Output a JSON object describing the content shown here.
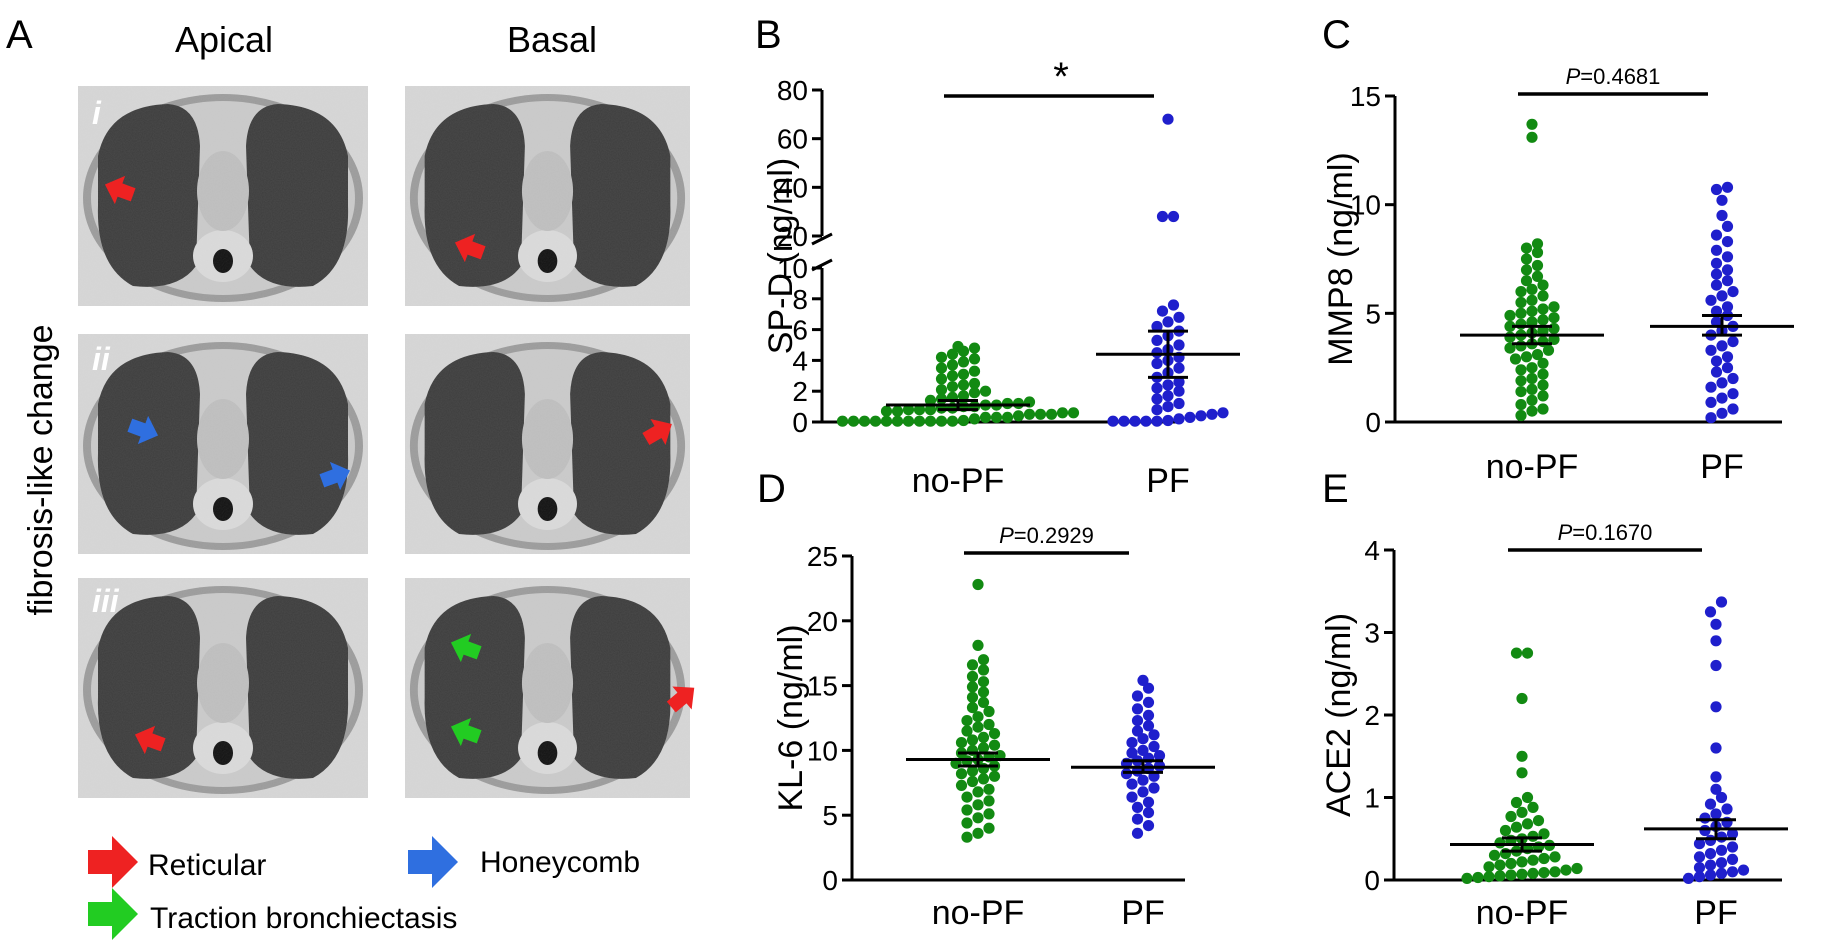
{
  "panel_a": {
    "letter": "A",
    "col_apical": "Apical",
    "col_basal": "Basal",
    "side_label": "fibrosis-like  change",
    "rows": [
      "i",
      "ii",
      "iii"
    ],
    "legend": {
      "reticular": "Reticular",
      "honeycomb": "Honeycomb",
      "traction": "Traction bronchiectasis"
    },
    "colors": {
      "reticular": "#ee2222",
      "honeycomb": "#2f6fe0",
      "traction": "#22cc22"
    }
  },
  "colors": {
    "no_pf": "#128a12",
    "pf": "#1f1fcc"
  },
  "chart_data": [
    {
      "id": "B",
      "type": "scatter",
      "letter": "B",
      "ylabel": "SP-D (ng/ml)",
      "categories": [
        "no-PF",
        "PF"
      ],
      "y_lower_range": [
        0,
        10
      ],
      "y_upper_range": [
        20,
        80
      ],
      "yticks_lower": [
        "0",
        "2",
        "4",
        "6",
        "8",
        "10"
      ],
      "yticks_upper": [
        "20",
        "40",
        "60",
        "80"
      ],
      "significance": "*",
      "series": [
        {
          "name": "no-PF",
          "mean": 1.1,
          "sem_low": 0.8,
          "sem_high": 1.4,
          "values": [
            0.05,
            0.05,
            0.05,
            0.05,
            0.05,
            0.05,
            0.05,
            0.05,
            0.05,
            0.05,
            0.05,
            0.1,
            0.2,
            0.3,
            0.3,
            0.3,
            0.4,
            0.5,
            0.5,
            0.5,
            0.6,
            0.6,
            0.7,
            0.7,
            0.8,
            0.8,
            0.8,
            0.9,
            0.9,
            1.0,
            1.0,
            1.1,
            1.1,
            1.2,
            1.2,
            1.3,
            1.4,
            1.5,
            1.6,
            1.7,
            1.9,
            2.0,
            2.1,
            2.3,
            2.4,
            2.5,
            2.8,
            3.0,
            3.1,
            3.3,
            3.5,
            3.7,
            3.9,
            4.1,
            4.2,
            4.4,
            4.6,
            4.8,
            4.9
          ]
        },
        {
          "name": "PF",
          "mean": 4.4,
          "sem_low": 2.9,
          "sem_high": 5.9,
          "values": [
            0.05,
            0.05,
            0.05,
            0.05,
            0.05,
            0.1,
            0.2,
            0.3,
            0.4,
            0.5,
            0.6,
            0.8,
            1.0,
            1.2,
            1.5,
            1.7,
            2.0,
            2.2,
            2.4,
            2.6,
            2.9,
            3.2,
            3.5,
            3.8,
            4.0,
            4.2,
            4.5,
            4.7,
            5.0,
            5.3,
            5.6,
            5.9,
            6.2,
            6.5,
            6.8,
            7.2,
            7.6,
            28,
            28,
            68
          ]
        }
      ]
    },
    {
      "id": "C",
      "type": "scatter",
      "letter": "C",
      "ylabel": "MMP8 (ng/ml)",
      "categories": [
        "no-PF",
        "PF"
      ],
      "ylim": [
        0,
        15
      ],
      "yticks": [
        "0",
        "5",
        "10",
        "15"
      ],
      "p_prefix": "P",
      "p_value": "=0.4681",
      "series": [
        {
          "name": "no-PF",
          "mean": 4.0,
          "sem_low": 3.6,
          "sem_high": 4.4,
          "values": [
            0.3,
            0.5,
            0.6,
            0.8,
            1.0,
            1.2,
            1.4,
            1.5,
            1.7,
            1.9,
            2.0,
            2.2,
            2.4,
            2.5,
            2.7,
            2.9,
            3.0,
            3.1,
            3.3,
            3.4,
            3.5,
            3.6,
            3.7,
            3.8,
            3.9,
            4.0,
            4.1,
            4.2,
            4.3,
            4.4,
            4.5,
            4.6,
            4.7,
            4.8,
            4.9,
            5.0,
            5.1,
            5.2,
            5.3,
            5.5,
            5.6,
            5.8,
            6.0,
            6.1,
            6.3,
            6.5,
            6.7,
            7.0,
            7.2,
            7.5,
            7.8,
            8.0,
            8.2,
            13.1,
            13.7
          ]
        },
        {
          "name": "PF",
          "mean": 4.4,
          "sem_low": 4.0,
          "sem_high": 4.9,
          "values": [
            0.2,
            0.4,
            0.6,
            0.9,
            1.1,
            1.3,
            1.6,
            1.8,
            2.0,
            2.3,
            2.5,
            2.8,
            3.0,
            3.3,
            3.5,
            3.7,
            4.0,
            4.2,
            4.4,
            4.6,
            4.9,
            5.1,
            5.3,
            5.6,
            5.8,
            6.0,
            6.3,
            6.5,
            6.8,
            7.0,
            7.3,
            7.6,
            7.9,
            8.3,
            8.6,
            9.0,
            9.5,
            10.2,
            10.7,
            10.8
          ]
        }
      ]
    },
    {
      "id": "D",
      "type": "scatter",
      "letter": "D",
      "ylabel": "KL-6 (ng/ml)",
      "categories": [
        "no-PF",
        "PF"
      ],
      "ylim": [
        0,
        25
      ],
      "yticks": [
        "0",
        "5",
        "10",
        "15",
        "20",
        "25"
      ],
      "p_prefix": "P",
      "p_value": "=0.2929",
      "series": [
        {
          "name": "no-PF",
          "mean": 9.3,
          "sem_low": 8.8,
          "sem_high": 9.8,
          "values": [
            3.3,
            3.6,
            4.0,
            4.4,
            4.8,
            5.1,
            5.4,
            5.8,
            6.1,
            6.4,
            6.8,
            7.0,
            7.3,
            7.6,
            7.8,
            8.0,
            8.2,
            8.4,
            8.6,
            8.8,
            9.0,
            9.2,
            9.3,
            9.5,
            9.6,
            9.8,
            10.0,
            10.2,
            10.4,
            10.6,
            10.8,
            11.0,
            11.3,
            11.5,
            11.8,
            12.0,
            12.3,
            12.6,
            13.0,
            13.3,
            13.7,
            14.1,
            14.5,
            14.9,
            15.3,
            15.7,
            16.2,
            16.6,
            17.0,
            18.1,
            22.8
          ]
        },
        {
          "name": "PF",
          "mean": 8.7,
          "sem_low": 8.3,
          "sem_high": 9.2,
          "values": [
            3.6,
            4.2,
            4.7,
            5.2,
            5.6,
            6.0,
            6.4,
            6.8,
            7.1,
            7.4,
            7.7,
            8.0,
            8.2,
            8.4,
            8.6,
            8.8,
            9.0,
            9.2,
            9.4,
            9.6,
            9.8,
            10.0,
            10.3,
            10.6,
            10.9,
            11.2,
            11.5,
            11.9,
            12.3,
            12.7,
            13.2,
            13.7,
            14.2,
            14.8,
            15.4
          ]
        }
      ]
    },
    {
      "id": "E",
      "type": "scatter",
      "letter": "E",
      "ylabel": "ACE2 (ng/ml)",
      "categories": [
        "no-PF",
        "PF"
      ],
      "ylim": [
        0,
        4
      ],
      "yticks": [
        "0",
        "1",
        "2",
        "3",
        "4"
      ],
      "p_prefix": "P",
      "p_value": "=0.1670",
      "series": [
        {
          "name": "no-PF",
          "mean": 0.43,
          "sem_low": 0.35,
          "sem_high": 0.51,
          "values": [
            0.02,
            0.03,
            0.04,
            0.05,
            0.06,
            0.07,
            0.08,
            0.09,
            0.1,
            0.12,
            0.14,
            0.16,
            0.18,
            0.2,
            0.22,
            0.24,
            0.26,
            0.28,
            0.3,
            0.32,
            0.35,
            0.38,
            0.4,
            0.42,
            0.45,
            0.48,
            0.5,
            0.53,
            0.56,
            0.6,
            0.64,
            0.68,
            0.72,
            0.77,
            0.82,
            0.88,
            0.94,
            1.0,
            1.3,
            1.5,
            2.2,
            2.75,
            2.75
          ]
        },
        {
          "name": "PF",
          "mean": 0.62,
          "sem_low": 0.5,
          "sem_high": 0.73,
          "values": [
            0.02,
            0.04,
            0.06,
            0.08,
            0.1,
            0.12,
            0.15,
            0.18,
            0.21,
            0.25,
            0.28,
            0.32,
            0.36,
            0.4,
            0.44,
            0.48,
            0.52,
            0.56,
            0.6,
            0.65,
            0.7,
            0.75,
            0.8,
            0.86,
            0.92,
            1.0,
            1.1,
            1.25,
            1.6,
            2.1,
            2.6,
            2.9,
            3.1,
            3.25,
            3.37
          ]
        }
      ]
    }
  ]
}
